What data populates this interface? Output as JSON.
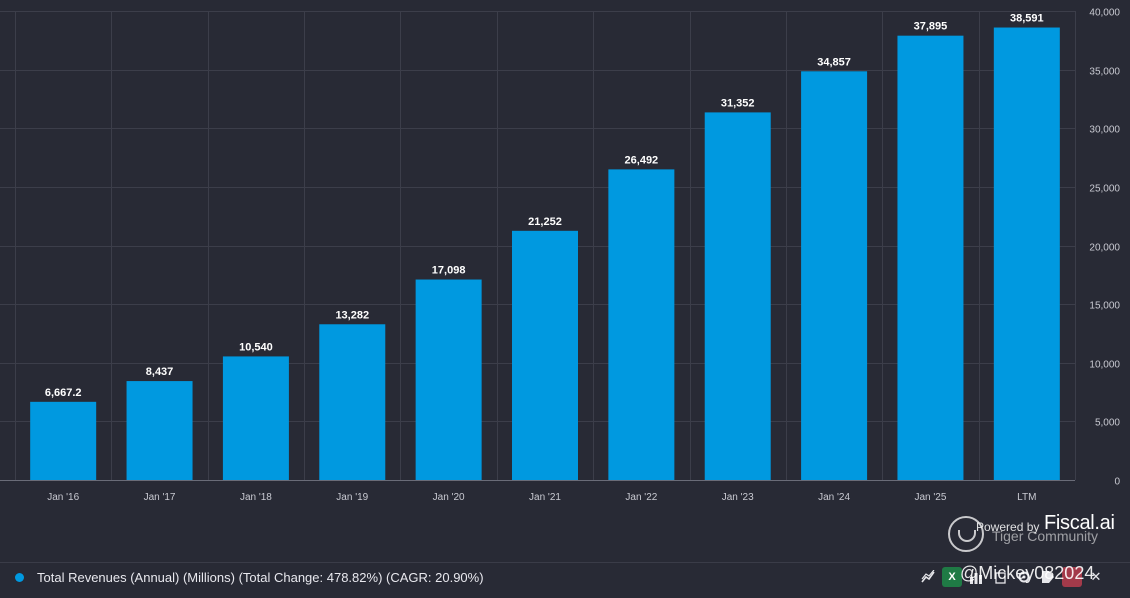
{
  "chart_data": {
    "type": "bar",
    "categories": [
      "Jan '16",
      "Jan '17",
      "Jan '18",
      "Jan '19",
      "Jan '20",
      "Jan '21",
      "Jan '22",
      "Jan '23",
      "Jan '24",
      "Jan '25",
      "LTM"
    ],
    "values": [
      6667.2,
      8437,
      10540,
      13282,
      17098,
      21252,
      26492,
      31352,
      34857,
      37895,
      38591
    ],
    "value_labels": [
      "6,667.2",
      "8,437",
      "10,540",
      "13,282",
      "17,098",
      "21,252",
      "26,492",
      "31,352",
      "34,857",
      "37,895",
      "38,591"
    ],
    "y_ticks": [
      0,
      5000,
      10000,
      15000,
      20000,
      25000,
      30000,
      35000,
      40000
    ],
    "y_tick_labels": [
      "0",
      "5,000",
      "10,000",
      "15,000",
      "20,000",
      "25,000",
      "30,000",
      "35,000",
      "40,000"
    ],
    "ylim": [
      0,
      40000
    ],
    "y_axis_side": "right",
    "grid": true,
    "bar_color": "#0099e0",
    "grid_color": "#3c3e4a",
    "background": "#282a35"
  },
  "legend": {
    "series_name": "Total Revenues (Annual) (Millions) (Total Change: 478.82%) (CAGR: 20.90%)",
    "color": "#0099e0"
  },
  "watermark": {
    "powered_by": "Powered by",
    "brand": "Fiscal.ai",
    "community": "Tiger Community",
    "handle": "@Mickey082024"
  },
  "toolbar": {
    "icons": [
      "chart-type-icon",
      "excel-icon",
      "bars-icon",
      "copy-icon",
      "settings-icon",
      "tag-icon",
      "red-icon",
      "close-icon"
    ],
    "excel_label": "X",
    "close_label": "✕"
  }
}
